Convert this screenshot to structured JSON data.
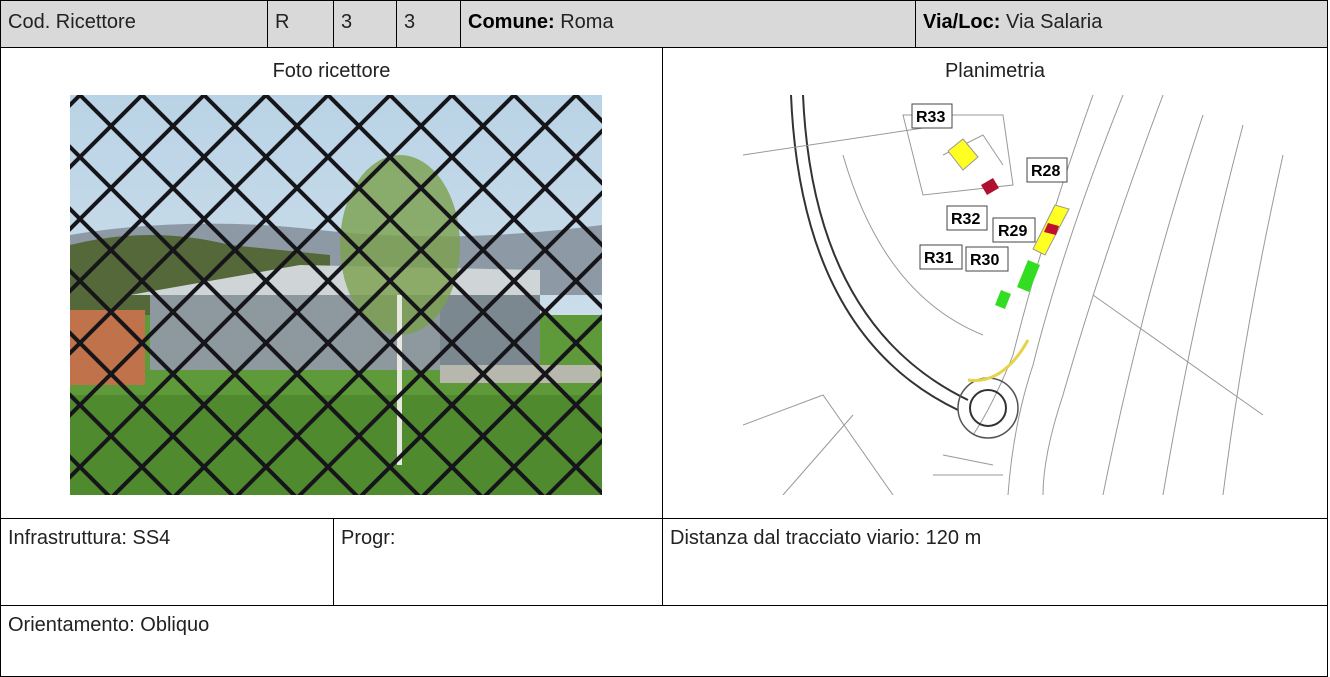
{
  "header": {
    "code_label": "Cod. Ricettore",
    "code": [
      "R",
      "3",
      "3"
    ],
    "comune": {
      "label": "Comune:",
      "value": "Roma"
    },
    "via": {
      "label": "Via/Loc:",
      "value": "Via Salaria"
    }
  },
  "photo": {
    "title": "Foto ricettore"
  },
  "map": {
    "title": "Planimetria",
    "labels": [
      "R33",
      "R28",
      "R32",
      "R29",
      "R31",
      "R30"
    ]
  },
  "info": {
    "infrastruttura": "Infrastruttura: SS4",
    "progr": "Progr:",
    "distanza": "Distanza dal tracciato viario: 120 m"
  },
  "orientamento": "Orientamento: Obliquo"
}
